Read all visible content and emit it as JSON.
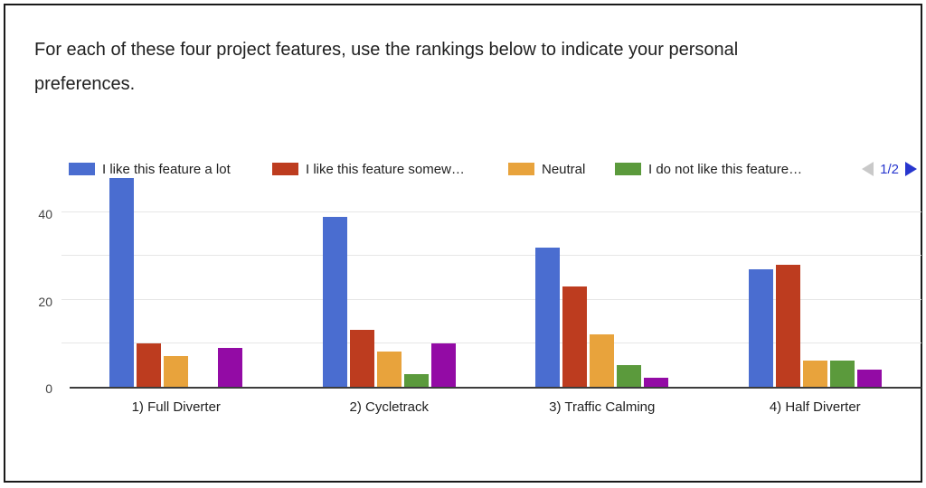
{
  "title": "For each of these four project features, use the rankings below to indicate your personal preferences.",
  "pagination": {
    "current": "1/2",
    "prev_enabled": false,
    "next_enabled": true
  },
  "colors": {
    "pagination_active": "#2736ce",
    "pagination_disabled": "#c9c9c9",
    "axis": "#3c3c3c",
    "gridline": "#e6e6e6",
    "text": "#212121"
  },
  "chart_data": {
    "type": "bar",
    "title": "",
    "xlabel": "",
    "ylabel": "",
    "categories": [
      "1) Full Diverter",
      "2) Cycletrack",
      "3) Traffic Calming",
      "4) Half Diverter"
    ],
    "series": [
      {
        "name": "I like this feature a lot",
        "color": "#4a6dd0",
        "values": [
          48,
          39,
          32,
          27
        ]
      },
      {
        "name": "I like this feature somew…",
        "color": "#bd3c1f",
        "values": [
          10,
          13,
          23,
          28
        ]
      },
      {
        "name": "Neutral",
        "color": "#e8a33c",
        "values": [
          7,
          8,
          12,
          6
        ]
      },
      {
        "name": "I do not like this feature…",
        "color": "#5b9a3c",
        "values": [
          0,
          3,
          5,
          6
        ]
      },
      {
        "name": "",
        "color": "#930ba5",
        "values": [
          9,
          10,
          2,
          4
        ]
      }
    ],
    "legend_visible_count": 4,
    "legend_position": "top",
    "grid": true,
    "ylim": [
      0,
      50
    ],
    "yticks": [
      0,
      20,
      40
    ],
    "gridlines": [
      10,
      20,
      30,
      40
    ]
  }
}
